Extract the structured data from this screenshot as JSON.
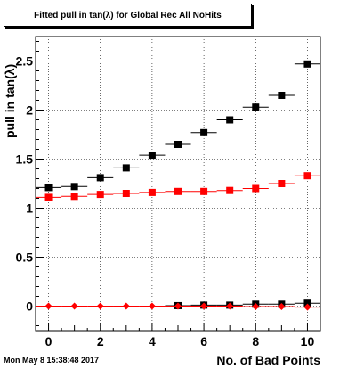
{
  "title": "Fitted pull in tan(λ) for Global Rec All NoHits",
  "timestamp": "Mon May  8 15:38:48 2017",
  "chart_data": {
    "type": "scatter",
    "title": "Fitted pull in tan(λ) for Global Rec All NoHits",
    "xlabel": "No. of Bad Points",
    "ylabel": "pull in tan(λ)",
    "xlim": [
      -0.5,
      10.5
    ],
    "ylim": [
      -0.25,
      2.75
    ],
    "grid": true,
    "x_ticks": [
      0,
      2,
      4,
      6,
      8,
      10
    ],
    "y_ticks": [
      0,
      0.5,
      1,
      1.5,
      2,
      2.5
    ],
    "y_tick_labels": [
      "0",
      "0.5",
      "1",
      "1.5",
      "2",
      "2.5"
    ],
    "series": [
      {
        "marker": "square",
        "color": "#000000",
        "x": [
          0,
          1,
          2,
          3,
          4,
          5,
          6,
          7,
          8,
          9,
          10
        ],
        "y": [
          1.21,
          1.22,
          1.31,
          1.41,
          1.54,
          1.65,
          1.77,
          1.9,
          2.03,
          2.15,
          2.47
        ]
      },
      {
        "marker": "square",
        "color": "#ff0000",
        "x": [
          0,
          1,
          2,
          3,
          4,
          5,
          6,
          7,
          8,
          9,
          10
        ],
        "y": [
          1.11,
          1.12,
          1.14,
          1.15,
          1.16,
          1.17,
          1.17,
          1.18,
          1.2,
          1.25,
          1.33
        ]
      },
      {
        "marker": "square",
        "color": "#000000",
        "x": [
          5,
          6,
          7,
          8,
          9,
          10
        ],
        "y": [
          0.005,
          0.01,
          0.01,
          0.02,
          0.02,
          0.03
        ]
      },
      {
        "marker": "diamond",
        "color": "#ff0000",
        "x": [
          0,
          1,
          2,
          3,
          4,
          5,
          6,
          7,
          8,
          9,
          10
        ],
        "y": [
          0,
          0,
          0,
          0,
          0,
          0,
          0,
          0,
          -0.005,
          -0.005,
          -0.01
        ]
      }
    ]
  }
}
